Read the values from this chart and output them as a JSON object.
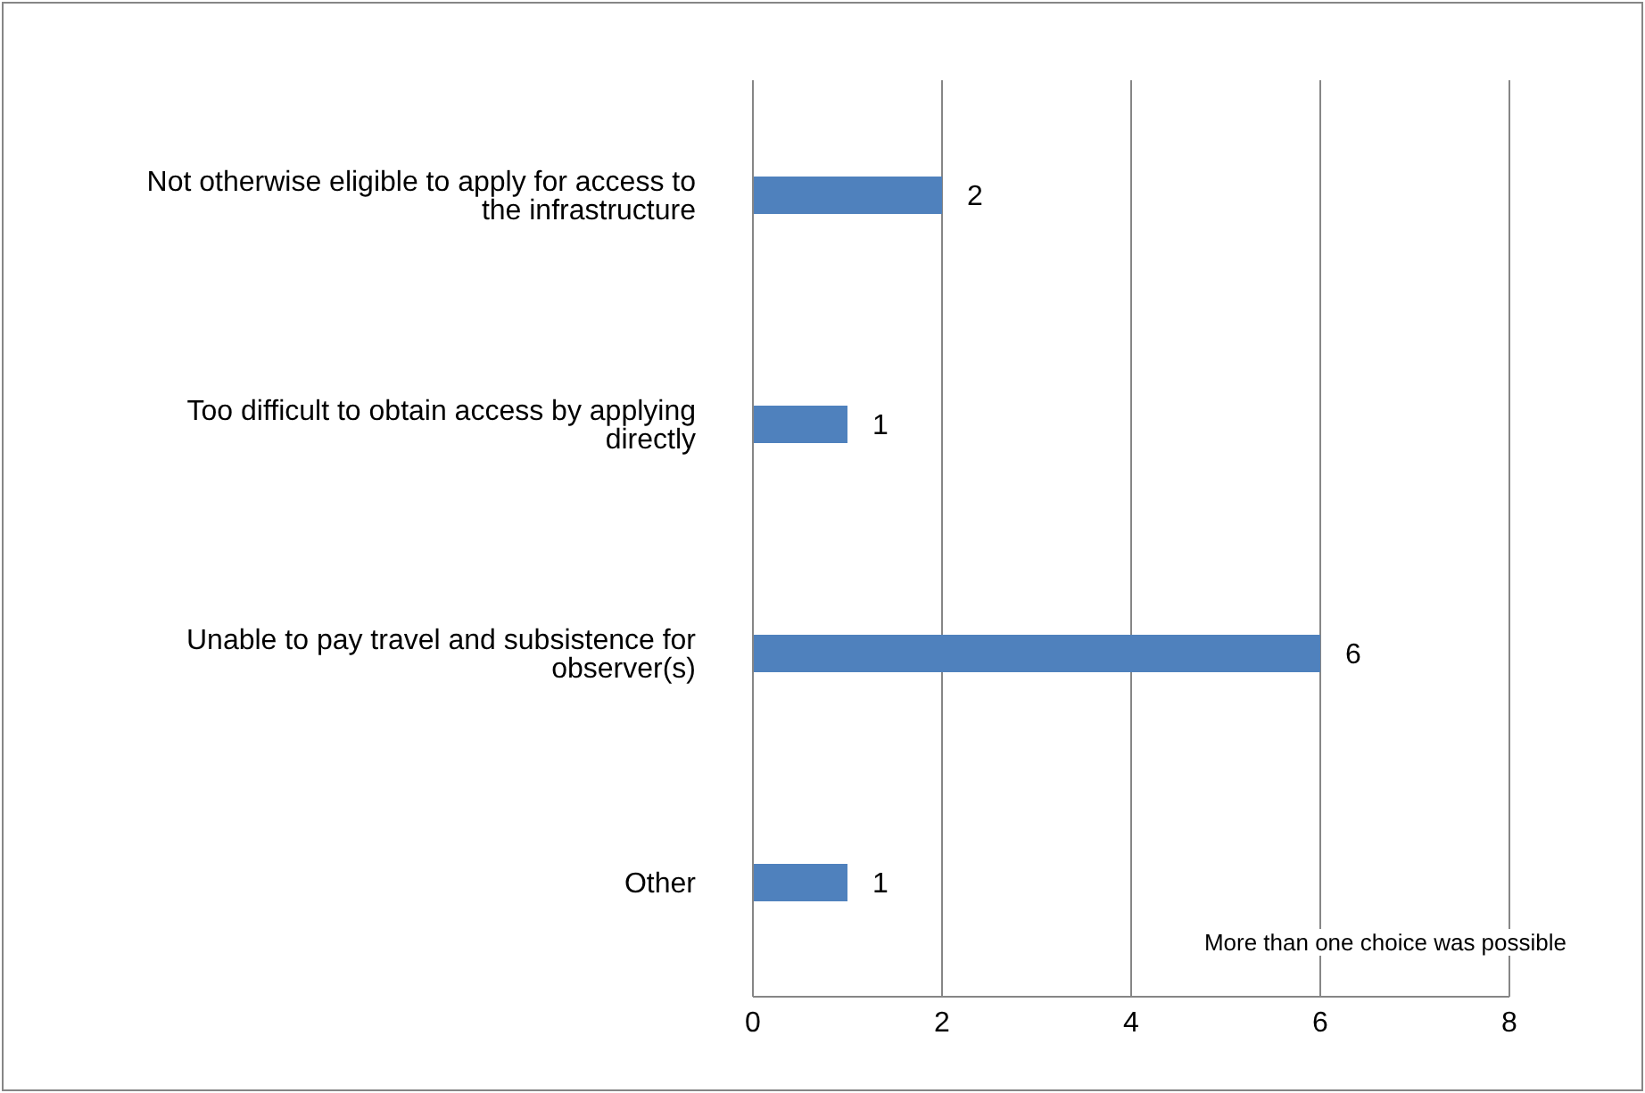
{
  "chart_data": {
    "type": "bar",
    "orientation": "horizontal",
    "categories": [
      "Not otherwise eligible to apply for access to the infrastructure",
      "Too difficult to obtain access by applying directly",
      "Unable to pay travel and subsistence for observer(s)",
      "Other"
    ],
    "values": [
      2,
      1,
      6,
      1
    ],
    "color": "#4f81bd",
    "xlim": [
      0,
      8
    ],
    "xticks": [
      0,
      2,
      4,
      6,
      8
    ],
    "grid": "x",
    "data_labels": true,
    "annotations": [
      "More than one choice was possible"
    ]
  }
}
